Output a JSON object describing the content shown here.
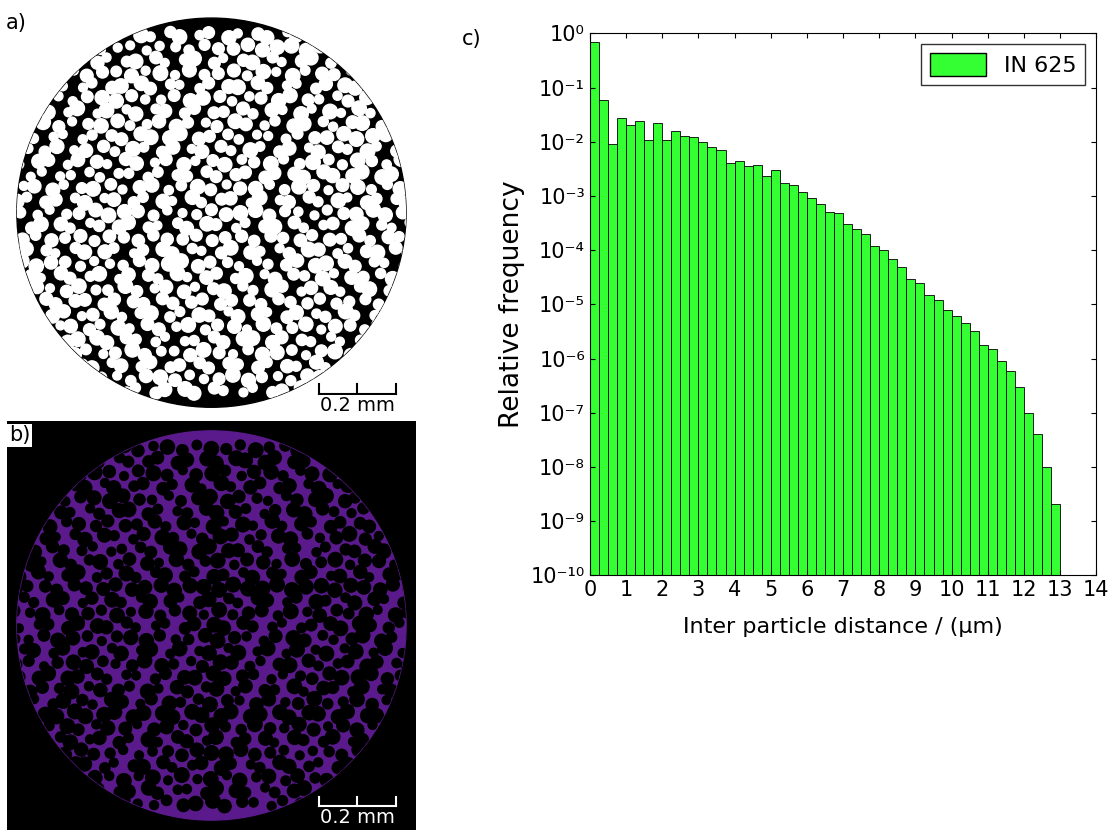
{
  "panels": [
    {
      "label": "a)",
      "scale_bar": "0.2 mm"
    },
    {
      "label": "b)",
      "scale_bar": "0.2 mm"
    }
  ],
  "chart_data": {
    "type": "bar",
    "panel_label": "c)",
    "x_label": "Inter particle distance / (µm)",
    "y_label": "Relative frequency",
    "bins": [
      0,
      0.25,
      0.5,
      0.75,
      1,
      1.25,
      1.5,
      1.75,
      2,
      2.25,
      2.5,
      2.75,
      3,
      3.25,
      3.5,
      3.75,
      4,
      4.25,
      4.5,
      4.75,
      5,
      5.25,
      5.5,
      5.75,
      6,
      6.25,
      6.5,
      6.75,
      7,
      7.25,
      7.5,
      7.75,
      8,
      8.25,
      8.5,
      8.75,
      9,
      9.25,
      9.5,
      9.75,
      10,
      10.25,
      10.5,
      10.75,
      11,
      11.25,
      11.5,
      11.75,
      12,
      12.25,
      12.5,
      12.75,
      13
    ],
    "series": [
      {
        "name": "IN 625",
        "color": "#33ff33",
        "values": [
          0.7,
          0.06,
          0.009,
          0.028,
          0.02,
          0.024,
          0.011,
          0.022,
          0.011,
          0.016,
          0.013,
          0.012,
          0.01,
          0.008,
          0.007,
          0.004,
          0.0045,
          0.0035,
          0.0038,
          0.0023,
          0.003,
          0.0017,
          0.0016,
          0.0012,
          0.0009,
          0.0007,
          0.0005,
          0.00048,
          0.0003,
          0.00025,
          0.0002,
          0.00012,
          0.0001,
          7e-05,
          5e-05,
          3e-05,
          2.5e-05,
          1.5e-05,
          1.2e-05,
          8e-06,
          6e-06,
          4.5e-06,
          3.2e-06,
          1.8e-06,
          1.5e-06,
          9e-07,
          6e-07,
          3e-07,
          1e-07,
          4e-08,
          1e-08,
          2e-09
        ]
      }
    ],
    "log": "y",
    "legend": "upper right",
    "xlim": [
      0,
      14
    ],
    "xticks": [
      0,
      1,
      2,
      3,
      4,
      5,
      6,
      7,
      8,
      9,
      10,
      11,
      12,
      13,
      14
    ],
    "ylim": [
      1e-10,
      1
    ],
    "yticks": [
      {
        "value": 1e-10,
        "label": "10⁻¹⁰"
      },
      {
        "value": 1e-09,
        "label": "10⁻⁹"
      },
      {
        "value": 1e-08,
        "label": "10⁻⁸"
      },
      {
        "value": 1e-07,
        "label": "10⁻⁷"
      },
      {
        "value": 1e-06,
        "label": "10⁻⁶"
      },
      {
        "value": 1e-05,
        "label": "10⁻⁵"
      },
      {
        "value": 0.0001,
        "label": "10⁻⁴"
      },
      {
        "value": 0.001,
        "label": "10⁻³"
      },
      {
        "value": 0.01,
        "label": "10⁻²"
      },
      {
        "value": 0.1,
        "label": "10⁻¹"
      },
      {
        "value": 1,
        "label": "10⁰"
      }
    ]
  }
}
